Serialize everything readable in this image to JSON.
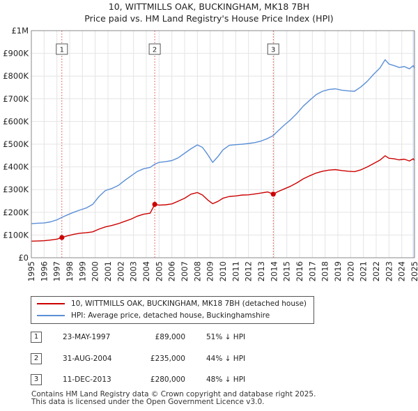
{
  "title": "10, WITTMILLS OAK, BUCKINGHAM, MK18 7BH",
  "subtitle": "Price paid vs. HM Land Registry's House Price Index (HPI)",
  "colors": {
    "property": "#cc0000",
    "hpi": "#5b8fd6",
    "shade": "#dde6f4"
  },
  "chart_data": {
    "type": "line",
    "xlabel": "",
    "ylabel": "",
    "xlim": [
      1995,
      2025
    ],
    "ylim": [
      0,
      1000000
    ],
    "x_ticks": [
      "1995",
      "1996",
      "1997",
      "1998",
      "1999",
      "2000",
      "2001",
      "2002",
      "2003",
      "2004",
      "2005",
      "2006",
      "2007",
      "2008",
      "2009",
      "2010",
      "2011",
      "2012",
      "2013",
      "2014",
      "2015",
      "2016",
      "2017",
      "2018",
      "2019",
      "2020",
      "2021",
      "2022",
      "2023",
      "2024",
      "2025"
    ],
    "y_ticks": [
      {
        "value": 0,
        "label": "£0"
      },
      {
        "value": 100000,
        "label": "£100K"
      },
      {
        "value": 200000,
        "label": "£200K"
      },
      {
        "value": 300000,
        "label": "£300K"
      },
      {
        "value": 400000,
        "label": "£400K"
      },
      {
        "value": 500000,
        "label": "£500K"
      },
      {
        "value": 600000,
        "label": "£600K"
      },
      {
        "value": 700000,
        "label": "£700K"
      },
      {
        "value": 800000,
        "label": "£800K"
      },
      {
        "value": 900000,
        "label": "£900K"
      },
      {
        "value": 1000000,
        "label": "£1M"
      }
    ],
    "series": [
      {
        "name": "10, WITTMILLS OAK, BUCKINGHAM, MK18 7BH (detached house)",
        "color": "#cc0000",
        "points": [
          [
            1995.0,
            73000
          ],
          [
            1995.5,
            74000
          ],
          [
            1996.0,
            75000
          ],
          [
            1996.5,
            78000
          ],
          [
            1997.0,
            82000
          ],
          [
            1997.39,
            89000
          ],
          [
            1997.8,
            96000
          ],
          [
            1998.3,
            103000
          ],
          [
            1998.8,
            108000
          ],
          [
            1999.3,
            110000
          ],
          [
            1999.8,
            114000
          ],
          [
            2000.3,
            126000
          ],
          [
            2000.8,
            136000
          ],
          [
            2001.3,
            142000
          ],
          [
            2001.8,
            150000
          ],
          [
            2002.3,
            160000
          ],
          [
            2002.8,
            170000
          ],
          [
            2003.3,
            183000
          ],
          [
            2003.8,
            192000
          ],
          [
            2004.3,
            196000
          ],
          [
            2004.66,
            235000
          ],
          [
            2005.0,
            232000
          ],
          [
            2005.5,
            233000
          ],
          [
            2006.0,
            237000
          ],
          [
            2006.5,
            249000
          ],
          [
            2007.0,
            262000
          ],
          [
            2007.5,
            280000
          ],
          [
            2008.0,
            287000
          ],
          [
            2008.4,
            276000
          ],
          [
            2008.8,
            255000
          ],
          [
            2009.2,
            238000
          ],
          [
            2009.6,
            248000
          ],
          [
            2010.0,
            262000
          ],
          [
            2010.5,
            270000
          ],
          [
            2011.0,
            272000
          ],
          [
            2011.5,
            276000
          ],
          [
            2012.0,
            277000
          ],
          [
            2012.5,
            281000
          ],
          [
            2013.0,
            285000
          ],
          [
            2013.5,
            290000
          ],
          [
            2013.94,
            280000
          ],
          [
            2014.3,
            291000
          ],
          [
            2014.8,
            303000
          ],
          [
            2015.3,
            315000
          ],
          [
            2015.8,
            330000
          ],
          [
            2016.3,
            348000
          ],
          [
            2016.8,
            361000
          ],
          [
            2017.3,
            373000
          ],
          [
            2017.8,
            381000
          ],
          [
            2018.3,
            386000
          ],
          [
            2018.8,
            388000
          ],
          [
            2019.3,
            384000
          ],
          [
            2019.8,
            381000
          ],
          [
            2020.3,
            379000
          ],
          [
            2020.8,
            387000
          ],
          [
            2021.3,
            400000
          ],
          [
            2021.8,
            415000
          ],
          [
            2022.3,
            430000
          ],
          [
            2022.7,
            449000
          ],
          [
            2023.0,
            438000
          ],
          [
            2023.4,
            436000
          ],
          [
            2023.8,
            431000
          ],
          [
            2024.2,
            434000
          ],
          [
            2024.6,
            426000
          ],
          [
            2024.9,
            436000
          ],
          [
            2025.0,
            428000
          ]
        ]
      },
      {
        "name": "HPI: Average price, detached house, Buckinghamshire",
        "color": "#5b8fd6",
        "points": [
          [
            1995.0,
            150000
          ],
          [
            1995.5,
            152000
          ],
          [
            1996.0,
            153000
          ],
          [
            1996.5,
            158000
          ],
          [
            1997.0,
            167000
          ],
          [
            1997.39,
            178000
          ],
          [
            1997.8,
            188000
          ],
          [
            1998.3,
            200000
          ],
          [
            1998.8,
            210000
          ],
          [
            1999.3,
            219000
          ],
          [
            1999.8,
            235000
          ],
          [
            2000.3,
            270000
          ],
          [
            2000.8,
            296000
          ],
          [
            2001.3,
            305000
          ],
          [
            2001.8,
            318000
          ],
          [
            2002.3,
            340000
          ],
          [
            2002.8,
            360000
          ],
          [
            2003.3,
            380000
          ],
          [
            2003.8,
            392000
          ],
          [
            2004.3,
            398000
          ],
          [
            2004.66,
            412000
          ],
          [
            2005.0,
            420000
          ],
          [
            2005.5,
            423000
          ],
          [
            2006.0,
            428000
          ],
          [
            2006.5,
            440000
          ],
          [
            2007.0,
            460000
          ],
          [
            2007.5,
            480000
          ],
          [
            2008.0,
            497000
          ],
          [
            2008.4,
            486000
          ],
          [
            2008.8,
            455000
          ],
          [
            2009.2,
            420000
          ],
          [
            2009.6,
            445000
          ],
          [
            2010.0,
            475000
          ],
          [
            2010.5,
            495000
          ],
          [
            2011.0,
            498000
          ],
          [
            2011.5,
            500000
          ],
          [
            2012.0,
            503000
          ],
          [
            2012.5,
            507000
          ],
          [
            2013.0,
            514000
          ],
          [
            2013.5,
            525000
          ],
          [
            2013.94,
            538000
          ],
          [
            2014.3,
            558000
          ],
          [
            2014.8,
            584000
          ],
          [
            2015.3,
            608000
          ],
          [
            2015.8,
            636000
          ],
          [
            2016.3,
            668000
          ],
          [
            2016.8,
            694000
          ],
          [
            2017.3,
            718000
          ],
          [
            2017.8,
            733000
          ],
          [
            2018.3,
            741000
          ],
          [
            2018.8,
            744000
          ],
          [
            2019.3,
            738000
          ],
          [
            2019.8,
            735000
          ],
          [
            2020.3,
            733000
          ],
          [
            2020.8,
            752000
          ],
          [
            2021.3,
            777000
          ],
          [
            2021.8,
            808000
          ],
          [
            2022.3,
            836000
          ],
          [
            2022.7,
            872000
          ],
          [
            2023.0,
            853000
          ],
          [
            2023.4,
            846000
          ],
          [
            2023.8,
            838000
          ],
          [
            2024.2,
            842000
          ],
          [
            2024.6,
            832000
          ],
          [
            2024.9,
            846000
          ],
          [
            2025.0,
            835000
          ]
        ]
      }
    ],
    "sale_markers": [
      {
        "label": "1",
        "x": 1997.39,
        "y": 89000
      },
      {
        "label": "2",
        "x": 2004.66,
        "y": 235000
      },
      {
        "label": "3",
        "x": 2013.94,
        "y": 280000
      }
    ],
    "legend_position": "below-chart"
  },
  "legend": {
    "property_label": "10, WITTMILLS OAK, BUCKINGHAM, MK18 7BH (detached house)",
    "hpi_label": "HPI: Average price, detached house, Buckinghamshire"
  },
  "sales": [
    {
      "num": "1",
      "date": "23-MAY-1997",
      "price": "£89,000",
      "hpi": "51% ↓ HPI"
    },
    {
      "num": "2",
      "date": "31-AUG-2004",
      "price": "£235,000",
      "hpi": "44% ↓ HPI"
    },
    {
      "num": "3",
      "date": "11-DEC-2013",
      "price": "£280,000",
      "hpi": "48% ↓ HPI"
    }
  ],
  "footer": {
    "line1": "Contains HM Land Registry data © Crown copyright and database right 2025.",
    "line2": "This data is licensed under the Open Government Licence v3.0."
  }
}
